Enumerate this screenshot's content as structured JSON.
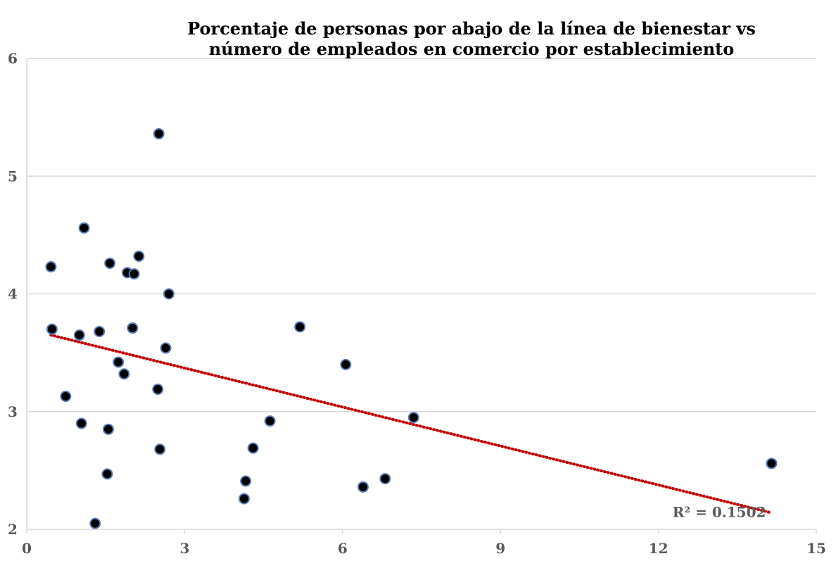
{
  "chart_data": {
    "type": "scatter",
    "title_lines": [
      "Porcentaje de personas por abajo de la línea de bienestar vs",
      "número de empleados en comercio por establecimiento"
    ],
    "xlabel": "",
    "ylabel": "",
    "xlim": [
      0,
      15
    ],
    "ylim": [
      2,
      6
    ],
    "x_ticks": [
      0,
      3,
      6,
      9,
      12,
      15
    ],
    "y_ticks": [
      2,
      3,
      4,
      5,
      6
    ],
    "grid": "horizontal",
    "points": [
      {
        "x": 0.46,
        "y": 4.23
      },
      {
        "x": 0.48,
        "y": 3.7
      },
      {
        "x": 0.74,
        "y": 3.13
      },
      {
        "x": 1.0,
        "y": 3.65
      },
      {
        "x": 1.04,
        "y": 2.9
      },
      {
        "x": 1.09,
        "y": 4.56
      },
      {
        "x": 1.3,
        "y": 2.05
      },
      {
        "x": 1.38,
        "y": 3.68
      },
      {
        "x": 1.53,
        "y": 2.47
      },
      {
        "x": 1.55,
        "y": 2.85
      },
      {
        "x": 1.58,
        "y": 4.26
      },
      {
        "x": 1.74,
        "y": 3.42
      },
      {
        "x": 1.85,
        "y": 3.32
      },
      {
        "x": 1.91,
        "y": 4.18
      },
      {
        "x": 2.01,
        "y": 3.71
      },
      {
        "x": 2.04,
        "y": 4.17
      },
      {
        "x": 2.13,
        "y": 4.32
      },
      {
        "x": 2.49,
        "y": 3.19
      },
      {
        "x": 2.51,
        "y": 5.36
      },
      {
        "x": 2.53,
        "y": 2.68
      },
      {
        "x": 2.64,
        "y": 3.54
      },
      {
        "x": 2.7,
        "y": 4.0
      },
      {
        "x": 4.13,
        "y": 2.26
      },
      {
        "x": 4.16,
        "y": 2.41
      },
      {
        "x": 4.3,
        "y": 2.69
      },
      {
        "x": 4.62,
        "y": 2.92
      },
      {
        "x": 5.19,
        "y": 3.72
      },
      {
        "x": 6.06,
        "y": 3.4
      },
      {
        "x": 6.39,
        "y": 2.36
      },
      {
        "x": 6.81,
        "y": 2.43
      },
      {
        "x": 7.35,
        "y": 2.95
      },
      {
        "x": 14.15,
        "y": 2.56
      }
    ],
    "trendline": {
      "type": "linear",
      "x_start": 0.46,
      "y_start": 3.65,
      "x_end": 14.15,
      "y_end": 2.14,
      "color": "#c00000",
      "r2_text": "R² = 0.1502"
    },
    "colors": {
      "point_fill": "#000000",
      "point_stroke": "#5b7bb5",
      "grid": "#d9d9d9",
      "tick_text": "#595959",
      "trendline": "#c00000"
    }
  }
}
